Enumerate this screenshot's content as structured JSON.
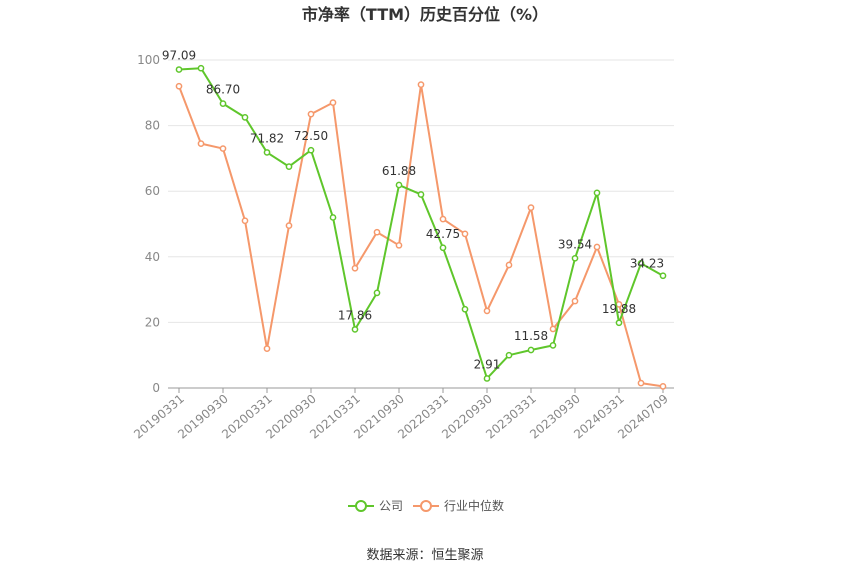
{
  "chart_data": {
    "type": "line",
    "title": "市净率（TTM）历史百分位（%）",
    "source": "数据来源：恒生聚源",
    "ylim": [
      0,
      100
    ],
    "yticks": [
      "0",
      "20",
      "40",
      "60",
      "80",
      "100"
    ],
    "x": [
      "20190331",
      "20190630",
      "20190930",
      "20191231",
      "20200331",
      "20200630",
      "20200930",
      "20201231",
      "20210331",
      "20210630",
      "20210930",
      "20211231",
      "20220331",
      "20220630",
      "20220930",
      "20221231",
      "20230331",
      "20230630",
      "20230930",
      "20231231",
      "20240331",
      "20240630",
      "20240709"
    ],
    "xtick_labels": [
      "20190331",
      "20190930",
      "20200331",
      "20200930",
      "20210331",
      "20210930",
      "20220331",
      "20220930",
      "20230331",
      "20230930",
      "20240331",
      "20240709"
    ],
    "grid": true,
    "legend_position": "bottom",
    "series": [
      {
        "name": "公司",
        "color": "#5fc62b",
        "values": [
          97.09,
          97.5,
          86.7,
          82.5,
          71.82,
          67.5,
          72.5,
          52.0,
          17.86,
          29.0,
          61.88,
          59.0,
          42.75,
          24.0,
          2.91,
          10.0,
          11.58,
          13.0,
          39.54,
          59.5,
          19.88,
          38.0,
          34.23
        ],
        "labels": {
          "0": "97.09",
          "2": "86.70",
          "4": "71.82",
          "6": "72.50",
          "8": "17.86",
          "10": "61.88",
          "12": "42.75",
          "14": "2.91",
          "16": "11.58",
          "18": "39.54",
          "20": "19.88",
          "22": "34.23"
        }
      },
      {
        "name": "行业中位数",
        "color": "#f5986b",
        "values": [
          92.0,
          74.5,
          73.0,
          51.0,
          12.0,
          49.5,
          83.5,
          87.0,
          36.5,
          47.5,
          43.5,
          92.5,
          51.5,
          47.0,
          23.5,
          37.5,
          55.0,
          18.0,
          26.5,
          43.0,
          25.5,
          1.5,
          0.5
        ],
        "labels": {}
      }
    ]
  }
}
